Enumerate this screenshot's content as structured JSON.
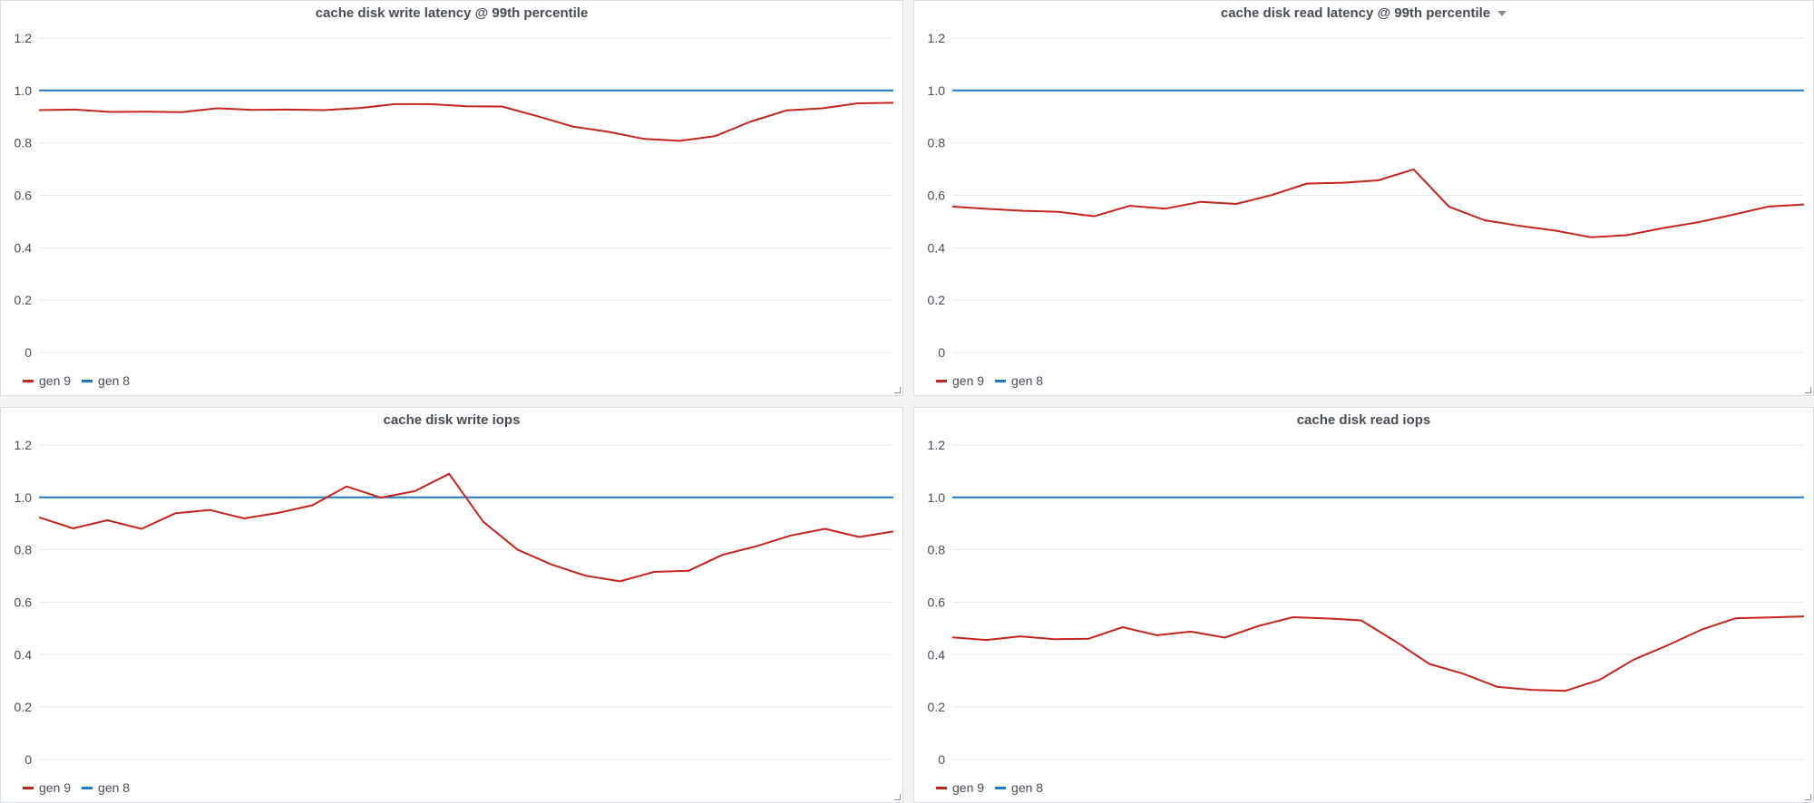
{
  "colors": {
    "gen9": "#c4241b",
    "gen8": "#1f78c1"
  },
  "panels": [
    {
      "title": "cache disk write latency @ 99th percentile",
      "has_menu_caret": false,
      "legend": [
        "gen 9",
        "gen 8"
      ]
    },
    {
      "title": "cache disk read latency @ 99th percentile",
      "has_menu_caret": true,
      "legend": [
        "gen 9",
        "gen 8"
      ]
    },
    {
      "title": "cache disk write iops",
      "has_menu_caret": false,
      "legend": [
        "gen 9",
        "gen 8"
      ]
    },
    {
      "title": "cache disk read iops",
      "has_menu_caret": false,
      "legend": [
        "gen 9",
        "gen 8"
      ]
    }
  ],
  "chart_data": [
    {
      "type": "line",
      "title": "cache disk write latency @ 99th percentile",
      "ylim": [
        0,
        1.2
      ],
      "yticks": [
        "1.2",
        "1.0",
        "0.8",
        "0.6",
        "0.4",
        "0.2",
        "0"
      ],
      "grid": true,
      "legend_position": "bottom-left",
      "series": [
        {
          "name": "gen 9",
          "values": [
            0.925,
            0.927,
            0.918,
            0.919,
            0.917,
            0.932,
            0.926,
            0.927,
            0.925,
            0.933,
            0.948,
            0.948,
            0.94,
            0.939,
            0.902,
            0.862,
            0.842,
            0.815,
            0.808,
            0.826,
            0.882,
            0.924,
            0.932,
            0.951,
            0.953
          ]
        },
        {
          "name": "gen 8",
          "values": [
            1.0,
            1.0,
            1.0,
            1.0,
            1.0,
            1.0,
            1.0,
            1.0,
            1.0,
            1.0,
            1.0,
            1.0,
            1.0,
            1.0,
            1.0,
            1.0,
            1.0,
            1.0,
            1.0,
            1.0,
            1.0,
            1.0,
            1.0,
            1.0,
            1.0
          ]
        }
      ]
    },
    {
      "type": "line",
      "title": "cache disk read latency @ 99th percentile",
      "ylim": [
        0,
        1.2
      ],
      "yticks": [
        "1.2",
        "1.0",
        "0.8",
        "0.6",
        "0.4",
        "0.2",
        "0"
      ],
      "grid": true,
      "legend_position": "bottom-left",
      "series": [
        {
          "name": "gen 9",
          "values": [
            0.557,
            0.548,
            0.541,
            0.537,
            0.52,
            0.56,
            0.549,
            0.575,
            0.567,
            0.601,
            0.645,
            0.648,
            0.657,
            0.699,
            0.556,
            0.505,
            0.483,
            0.465,
            0.44,
            0.448,
            0.474,
            0.497,
            0.526,
            0.557,
            0.565
          ]
        },
        {
          "name": "gen 8",
          "values": [
            1.0,
            1.0,
            1.0,
            1.0,
            1.0,
            1.0,
            1.0,
            1.0,
            1.0,
            1.0,
            1.0,
            1.0,
            1.0,
            1.0,
            1.0,
            1.0,
            1.0,
            1.0,
            1.0,
            1.0,
            1.0,
            1.0,
            1.0,
            1.0,
            1.0
          ]
        }
      ]
    },
    {
      "type": "line",
      "title": "cache disk write iops",
      "ylim": [
        0,
        1.2
      ],
      "yticks": [
        "1.2",
        "1.0",
        "0.8",
        "0.6",
        "0.4",
        "0.2",
        "0"
      ],
      "grid": true,
      "legend_position": "bottom-left",
      "series": [
        {
          "name": "gen 9",
          "values": [
            0.924,
            0.882,
            0.913,
            0.88,
            0.94,
            0.952,
            0.92,
            0.941,
            0.97,
            1.042,
            0.999,
            1.024,
            1.09,
            0.907,
            0.801,
            0.744,
            0.701,
            0.68,
            0.716,
            0.72,
            0.781,
            0.814,
            0.855,
            0.88,
            0.849,
            0.87
          ]
        },
        {
          "name": "gen 8",
          "values": [
            1.0,
            1.0,
            1.0,
            1.0,
            1.0,
            1.0,
            1.0,
            1.0,
            1.0,
            1.0,
            1.0,
            1.0,
            1.0,
            1.0,
            1.0,
            1.0,
            1.0,
            1.0,
            1.0,
            1.0,
            1.0,
            1.0,
            1.0,
            1.0,
            1.0,
            1.0
          ]
        }
      ]
    },
    {
      "type": "line",
      "title": "cache disk read iops",
      "ylim": [
        0,
        1.2
      ],
      "yticks": [
        "1.2",
        "1.0",
        "0.8",
        "0.6",
        "0.4",
        "0.2",
        "0"
      ],
      "grid": true,
      "legend_position": "bottom-left",
      "series": [
        {
          "name": "gen 9",
          "values": [
            0.466,
            0.456,
            0.47,
            0.459,
            0.461,
            0.505,
            0.474,
            0.488,
            0.465,
            0.51,
            0.543,
            0.538,
            0.531,
            0.451,
            0.365,
            0.327,
            0.277,
            0.266,
            0.262,
            0.304,
            0.381,
            0.436,
            0.496,
            0.539,
            0.542,
            0.546
          ]
        },
        {
          "name": "gen 8",
          "values": [
            1.0,
            1.0,
            1.0,
            1.0,
            1.0,
            1.0,
            1.0,
            1.0,
            1.0,
            1.0,
            1.0,
            1.0,
            1.0,
            1.0,
            1.0,
            1.0,
            1.0,
            1.0,
            1.0,
            1.0,
            1.0,
            1.0,
            1.0,
            1.0,
            1.0,
            1.0
          ]
        }
      ]
    }
  ]
}
